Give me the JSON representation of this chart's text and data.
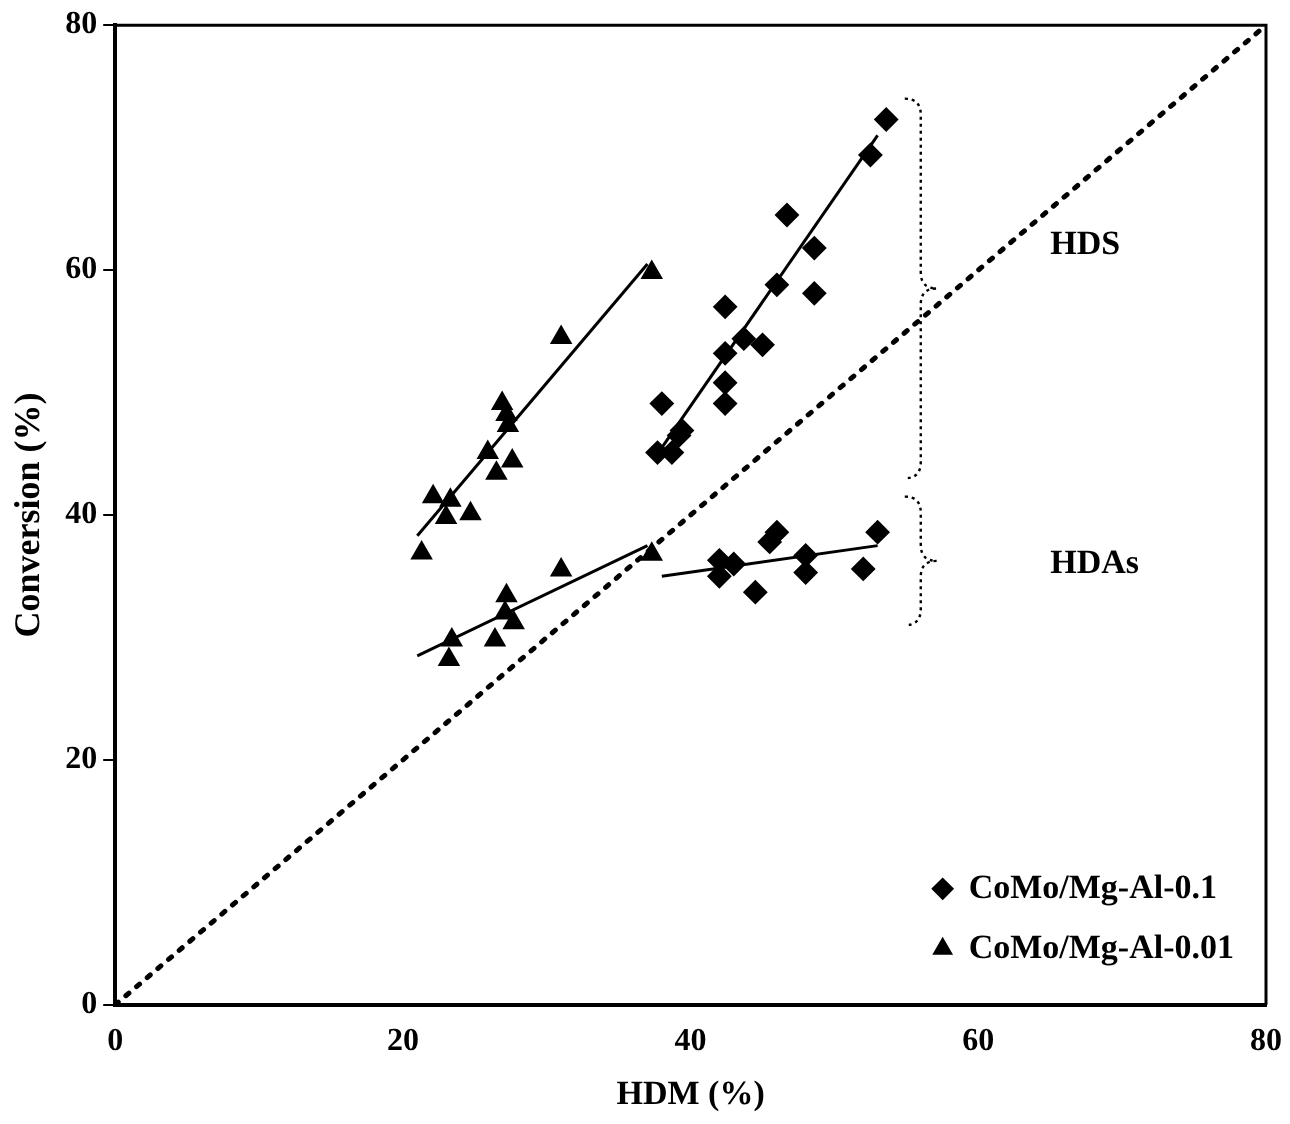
{
  "chart_data": {
    "type": "scatter",
    "xlabel": "HDM (%)",
    "ylabel": "Conversion (%)",
    "xlim": [
      0,
      80
    ],
    "xticks": [
      0,
      20,
      40,
      60,
      80
    ],
    "ylim": [
      0,
      80
    ],
    "yticks": [
      0,
      20,
      40,
      60,
      80
    ],
    "grid": false,
    "legend": "bottom right",
    "series": [
      {
        "name": "CoMo/Mg-Al-0.1",
        "marker": "diamond",
        "color": "#000000",
        "x": [
          53.6,
          52.5,
          46.7,
          48.6,
          46.0,
          48.6,
          42.4,
          43.7,
          45.0,
          42.4,
          42.4,
          42.4,
          38.0,
          39.4,
          39.2,
          37.7,
          38.7,
          42,
          42,
          43,
          44.5,
          45.5,
          46,
          48,
          48,
          52,
          53
        ],
        "values": [
          72.3,
          69.4,
          64.5,
          61.8,
          58.8,
          58.1,
          57.0,
          54.4,
          53.9,
          53.2,
          50.8,
          49.1,
          49.1,
          46.9,
          46.5,
          45.1,
          45.1,
          36.3,
          35,
          36,
          33.7,
          37.8,
          38.6,
          36.7,
          35.3,
          35.6,
          38.6
        ]
      },
      {
        "name": "CoMo/Mg-Al-0.01",
        "marker": "triangle",
        "color": "#000000",
        "x": [
          37.3,
          31.0,
          26.9,
          27.2,
          27.3,
          25.9,
          27.6,
          26.5,
          22.1,
          23.3,
          23.0,
          24.7,
          21.3,
          37.3,
          31.0,
          27.2,
          27.1,
          26.4,
          27.7,
          23.4,
          23.2
        ],
        "values": [
          59.8,
          54.5,
          49.1,
          48.2,
          47.3,
          45.1,
          44.4,
          43.4,
          41.5,
          41.2,
          39.8,
          40.1,
          36.9,
          36.8,
          35.5,
          33.4,
          32.0,
          29.8,
          31.2,
          29.8,
          28.2
        ]
      },
      {
        "type": "line",
        "marker": "none",
        "line_style": "solid",
        "color": "#000000",
        "x": [
          37.7,
          53
        ],
        "values": [
          45,
          71
        ]
      },
      {
        "type": "line",
        "marker": "none",
        "line_style": "solid",
        "color": "#000000",
        "x": [
          38,
          53
        ],
        "values": [
          35,
          37.5
        ]
      },
      {
        "type": "line",
        "marker": "none",
        "line_style": "solid",
        "color": "#000000",
        "x": [
          21,
          37
        ],
        "values": [
          38.3,
          60.5
        ]
      },
      {
        "type": "line",
        "marker": "none",
        "line_style": "solid",
        "color": "#000000",
        "x": [
          21,
          37
        ],
        "values": [
          28.5,
          37.5
        ]
      },
      {
        "type": "line",
        "marker": "none",
        "line_style": "dotted",
        "color": "#000000",
        "x": [
          0,
          80
        ],
        "values": [
          0,
          80
        ]
      }
    ],
    "annotations": [
      "HDS",
      "HDAs"
    ]
  }
}
